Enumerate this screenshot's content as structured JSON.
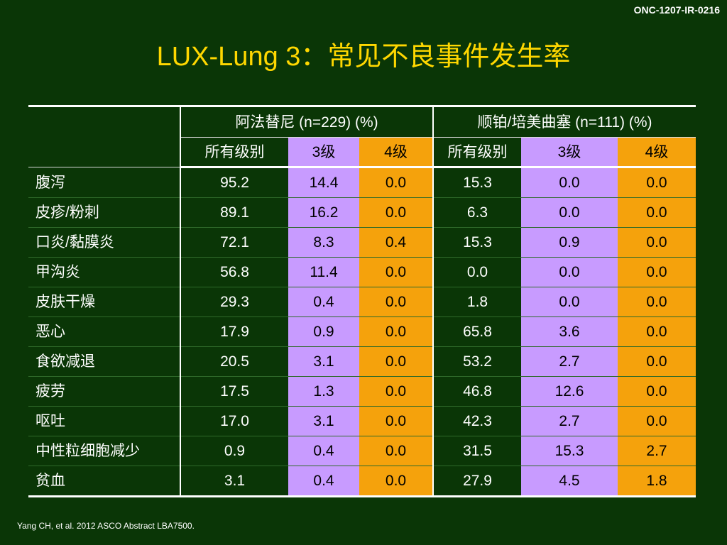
{
  "slide_code": "ONC-1207-IR-0216",
  "title": "LUX-Lung 3：常见不良事件发生率",
  "table": {
    "group_headers": [
      "阿法替尼 (n=229) (%)",
      "顺铂/培美曲塞 (n=111) (%)"
    ],
    "sub_headers": [
      "所有级别",
      "3级",
      "4级",
      "所有级别",
      "3级",
      "4级"
    ],
    "rows": [
      {
        "label": "腹泻",
        "values": [
          "95.2",
          "14.4",
          "0.0",
          "15.3",
          "0.0",
          "0.0"
        ]
      },
      {
        "label": "皮疹/粉刺",
        "values": [
          "89.1",
          "16.2",
          "0.0",
          "6.3",
          "0.0",
          "0.0"
        ]
      },
      {
        "label": "口炎/黏膜炎",
        "values": [
          "72.1",
          "8.3",
          "0.4",
          "15.3",
          "0.9",
          "0.0"
        ]
      },
      {
        "label": "甲沟炎",
        "values": [
          "56.8",
          "11.4",
          "0.0",
          "0.0",
          "0.0",
          "0.0"
        ]
      },
      {
        "label": "皮肤干燥",
        "values": [
          "29.3",
          "0.4",
          "0.0",
          "1.8",
          "0.0",
          "0.0"
        ]
      },
      {
        "label": "恶心",
        "values": [
          "17.9",
          "0.9",
          "0.0",
          "65.8",
          "3.6",
          "0.0"
        ]
      },
      {
        "label": "食欲减退",
        "values": [
          "20.5",
          "3.1",
          "0.0",
          "53.2",
          "2.7",
          "0.0"
        ]
      },
      {
        "label": "疲劳",
        "values": [
          "17.5",
          "1.3",
          "0.0",
          "46.8",
          "12.6",
          "0.0"
        ]
      },
      {
        "label": "呕吐",
        "values": [
          "17.0",
          "3.1",
          "0.0",
          "42.3",
          "2.7",
          "0.0"
        ]
      },
      {
        "label": "中性粒细胞减少",
        "values": [
          "0.9",
          "0.4",
          "0.0",
          "31.5",
          "15.3",
          "2.7"
        ]
      },
      {
        "label": "贫血",
        "values": [
          "3.1",
          "0.4",
          "0.0",
          "27.9",
          "4.5",
          "1.8"
        ]
      }
    ]
  },
  "footnote": "Yang CH, et al. 2012 ASCO Abstract LBA7500.",
  "colors": {
    "background": "#0a3606",
    "title": "#ffd700",
    "grade3_fill": "#c89bff",
    "grade4_fill": "#f5a20c"
  }
}
